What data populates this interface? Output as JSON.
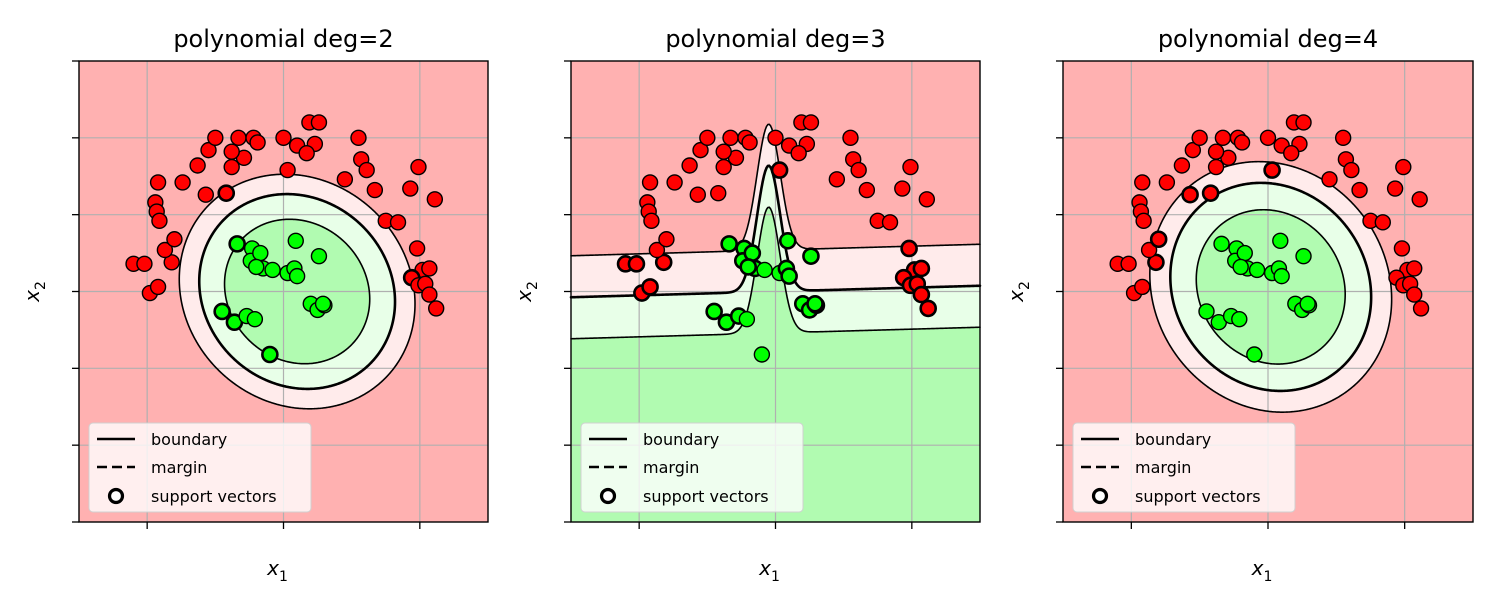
{
  "chart_data": [
    {
      "type": "scatter",
      "title": "polynomial deg=2",
      "xlabel": "x",
      "xlabel_sub": "1",
      "ylabel": "x",
      "ylabel_sub": "2",
      "xlim": [
        -1.5,
        1.5
      ],
      "ylim": [
        -1.5,
        1.5
      ],
      "grid": true,
      "legend_placement": "lower-left",
      "legend": {
        "boundary": "boundary",
        "margin": "margin",
        "support": "support vectors"
      },
      "region_colors": {
        "negative": "#ffb1b1",
        "positive": "#b1fbb1"
      },
      "classes": {
        "negative_color": "#ff0000",
        "positive_color": "#00ff00"
      },
      "model": {
        "kind": "ellipse",
        "cx": 0.1,
        "cy": 0.0,
        "rx": 0.73,
        "ry": 0.62,
        "tilt": -20,
        "inner_margin": 0.55,
        "outer_margin": 1.45
      }
    },
    {
      "type": "scatter",
      "title": "polynomial deg=3",
      "xlabel": "x",
      "xlabel_sub": "1",
      "ylabel": "x",
      "ylabel_sub": "2",
      "xlim": [
        -1.5,
        1.5
      ],
      "ylim": [
        -1.5,
        1.5
      ],
      "grid": true,
      "legend_placement": "lower-left",
      "legend": {
        "boundary": "boundary",
        "margin": "margin",
        "support": "support vectors"
      },
      "region_colors": {
        "negative": "#ffb1b1",
        "positive": "#b1fbb1"
      },
      "classes": {
        "negative_color": "#ff0000",
        "positive_color": "#00ff00"
      },
      "model": {
        "kind": "linebump",
        "a": 0.0,
        "b": 0.025,
        "bump_x": -0.05,
        "bump_w": 0.12,
        "bump_h": 0.82,
        "margin": 0.27
      }
    },
    {
      "type": "scatter",
      "title": "polynomial deg=4",
      "xlabel": "x",
      "xlabel_sub": "1",
      "ylabel": "x",
      "ylabel_sub": "2",
      "xlim": [
        -1.5,
        1.5
      ],
      "ylim": [
        -1.5,
        1.5
      ],
      "grid": true,
      "legend_placement": "lower-left",
      "legend": {
        "boundary": "boundary",
        "margin": "margin",
        "support": "support vectors"
      },
      "region_colors": {
        "negative": "#ffb1b1",
        "positive": "#b1fbb1"
      },
      "classes": {
        "negative_color": "#ff0000",
        "positive_color": "#00ff00"
      },
      "model": {
        "kind": "ellipse",
        "cx": 0.02,
        "cy": 0.03,
        "rx": 0.75,
        "ry": 0.66,
        "tilt": -25,
        "inner_margin": 0.55,
        "outer_margin": 1.45
      }
    }
  ],
  "points": {
    "negative": [
      [
        -1.1,
        0.18
      ],
      [
        -1.02,
        0.18
      ],
      [
        -0.98,
        -0.01
      ],
      [
        -0.92,
        0.03
      ],
      [
        -0.82,
        0.19
      ],
      [
        -0.87,
        0.27
      ],
      [
        -0.8,
        0.34
      ],
      [
        -0.94,
        0.58
      ],
      [
        -0.93,
        0.52
      ],
      [
        -0.91,
        0.46
      ],
      [
        -0.92,
        0.71
      ],
      [
        -0.74,
        0.71
      ],
      [
        -0.57,
        0.63
      ],
      [
        -0.42,
        0.64
      ],
      [
        -0.63,
        0.82
      ],
      [
        -0.55,
        0.92
      ],
      [
        -0.5,
        1.0
      ],
      [
        -0.33,
        1.0
      ],
      [
        -0.22,
        1.0
      ],
      [
        -0.38,
        0.81
      ],
      [
        -0.29,
        0.87
      ],
      [
        -0.38,
        0.91
      ],
      [
        -0.19,
        0.97
      ],
      [
        0.0,
        1.0
      ],
      [
        0.1,
        0.95
      ],
      [
        0.19,
        1.1
      ],
      [
        0.26,
        1.1
      ],
      [
        0.23,
        0.96
      ],
      [
        0.17,
        0.9
      ],
      [
        0.03,
        0.79
      ],
      [
        0.45,
        0.73
      ],
      [
        0.57,
        0.86
      ],
      [
        0.61,
        0.79
      ],
      [
        0.67,
        0.66
      ],
      [
        0.55,
        1.0
      ],
      [
        0.75,
        0.46
      ],
      [
        0.84,
        0.45
      ],
      [
        0.93,
        0.67
      ],
      [
        0.99,
        0.81
      ],
      [
        1.11,
        0.6
      ],
      [
        0.98,
        0.28
      ],
      [
        1.02,
        0.14
      ],
      [
        0.94,
        0.09
      ],
      [
        0.99,
        0.04
      ],
      [
        1.04,
        0.05
      ],
      [
        1.07,
        0.15
      ],
      [
        1.07,
        -0.02
      ],
      [
        1.12,
        -0.11
      ]
    ],
    "positive": [
      [
        -0.34,
        0.31
      ],
      [
        -0.23,
        0.28
      ],
      [
        -0.24,
        0.2
      ],
      [
        -0.17,
        0.25
      ],
      [
        -0.15,
        0.15
      ],
      [
        -0.2,
        0.16
      ],
      [
        -0.08,
        0.14
      ],
      [
        0.03,
        0.12
      ],
      [
        0.08,
        0.15
      ],
      [
        0.09,
        0.33
      ],
      [
        0.26,
        0.23
      ],
      [
        0.1,
        0.1
      ],
      [
        0.2,
        -0.08
      ],
      [
        0.25,
        -0.12
      ],
      [
        0.3,
        -0.09
      ],
      [
        0.29,
        -0.08
      ],
      [
        -0.45,
        -0.13
      ],
      [
        -0.36,
        -0.2
      ],
      [
        -0.27,
        -0.16
      ],
      [
        -0.1,
        -0.41
      ],
      [
        -0.21,
        -0.18
      ]
    ]
  }
}
